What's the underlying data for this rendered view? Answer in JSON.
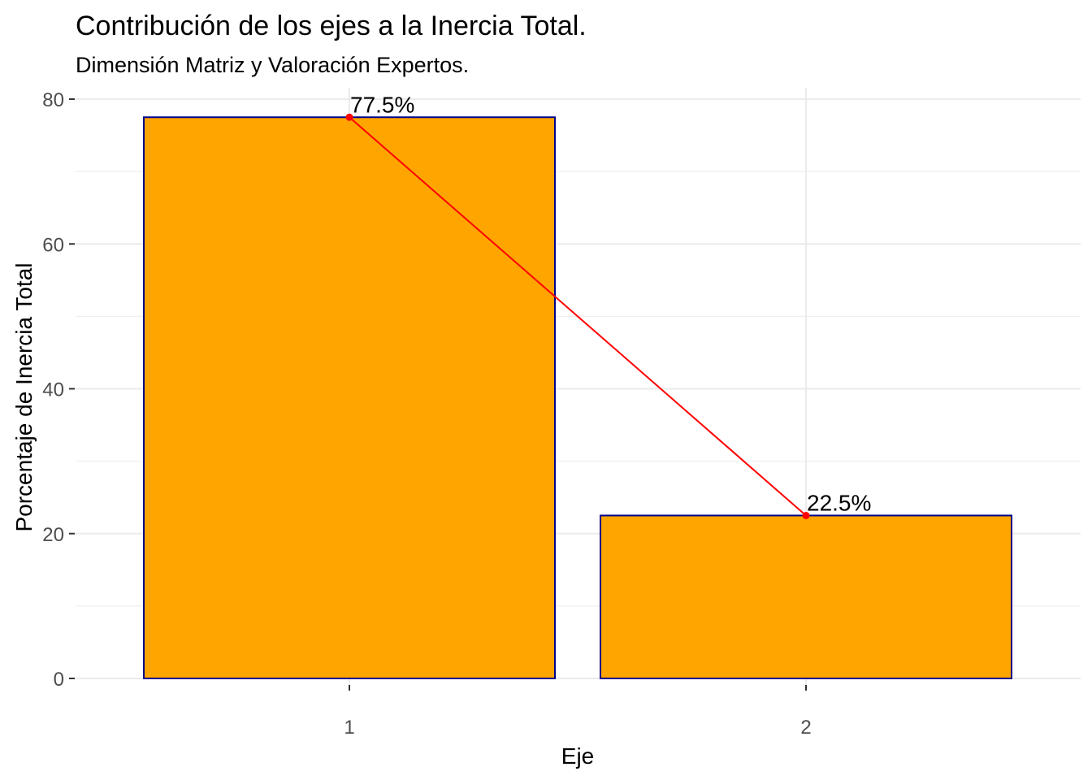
{
  "chart_data": {
    "type": "bar",
    "title": "Contribución de los ejes a la Inercia Total.",
    "subtitle": "Dimensión Matriz y Valoración Expertos.",
    "xlabel": "Eje",
    "ylabel": "Porcentaje de Inercia Total",
    "categories": [
      "1",
      "2"
    ],
    "values": [
      77.5,
      22.5
    ],
    "data_labels": [
      "77.5%",
      "22.5%"
    ],
    "ylim": [
      0,
      80
    ],
    "yticks": [
      0,
      20,
      40,
      60,
      80
    ],
    "ytick_labels": [
      "0",
      "20",
      "40",
      "60",
      "80"
    ],
    "grid": true,
    "overlay_line": true,
    "colors": {
      "bar_fill": "#FFA500",
      "bar_border": "#00008B",
      "line": "#FF0000",
      "grid": "#EBEBEB",
      "tick_text": "#4D4D4D"
    }
  }
}
